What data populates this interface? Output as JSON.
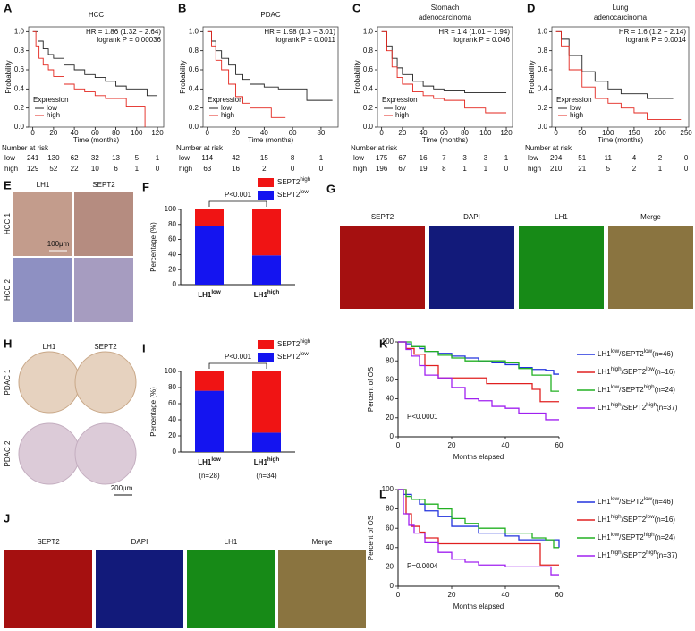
{
  "chart_data": [
    {
      "type": "line",
      "step": true,
      "label": "A",
      "title_lines": [
        "HCC"
      ],
      "annotations": [
        "HR = 1.86 (1.32 − 2.64)",
        "logrank P = 0.00036"
      ],
      "x_label": "Time (months)",
      "y_label": "Probability",
      "legend_title": "Expression",
      "legend": "lower left",
      "frame": "box",
      "xlim": [
        -4,
        126
      ],
      "xticks": [
        0,
        20,
        40,
        60,
        80,
        100,
        120
      ],
      "ylim": [
        0,
        1.05
      ],
      "yticks": [
        {
          "value": 0,
          "label": "0.0"
        },
        0.2,
        0.4,
        0.6,
        0.8,
        {
          "value": 1,
          "label": "1.0"
        }
      ],
      "series": [
        {
          "name": "low",
          "color": "#222222",
          "x": [
            0,
            5,
            10,
            15,
            20,
            30,
            40,
            50,
            60,
            70,
            80,
            90,
            100,
            110,
            120
          ],
          "values": [
            1,
            0.9,
            0.82,
            0.76,
            0.72,
            0.65,
            0.6,
            0.55,
            0.52,
            0.48,
            0.43,
            0.4,
            0.4,
            0.33,
            0.33
          ]
        },
        {
          "name": "high",
          "color": "#e3261e",
          "x": [
            0,
            3,
            6,
            10,
            15,
            20,
            30,
            40,
            50,
            60,
            70,
            80,
            90,
            100,
            108
          ],
          "values": [
            1,
            0.85,
            0.72,
            0.65,
            0.6,
            0.53,
            0.45,
            0.4,
            0.37,
            0.33,
            0.3,
            0.3,
            0.22,
            0.22,
            0
          ]
        }
      ],
      "risk_table": {
        "title": "Number at risk",
        "rows": [
          {
            "name": "low",
            "color": "#111111",
            "values": [
              241,
              130,
              62,
              32,
              13,
              5,
              1
            ]
          },
          {
            "name": "high",
            "color": "#e3261e",
            "values": [
              129,
              52,
              22,
              10,
              6,
              1,
              0
            ]
          }
        ]
      }
    },
    {
      "type": "line",
      "step": true,
      "label": "B",
      "title_lines": [
        "PDAC"
      ],
      "annotations": [
        "HR = 1.98 (1.3 − 3.01)",
        "logrank P = 0.0011"
      ],
      "x_label": "Time (months)",
      "y_label": "Probability",
      "legend_title": "Expression",
      "legend": "lower left",
      "frame": "box",
      "xlim": [
        -3,
        92
      ],
      "xticks": [
        0,
        20,
        40,
        60,
        80
      ],
      "ylim": [
        0,
        1.05
      ],
      "yticks": [
        {
          "value": 0,
          "label": "0.0"
        },
        0.2,
        0.4,
        0.6,
        0.8,
        {
          "value": 1,
          "label": "1.0"
        }
      ],
      "series": [
        {
          "name": "low",
          "color": "#222222",
          "x": [
            0,
            3,
            6,
            10,
            15,
            20,
            25,
            30,
            40,
            50,
            60,
            70,
            80,
            88
          ],
          "values": [
            1,
            0.9,
            0.8,
            0.72,
            0.65,
            0.55,
            0.5,
            0.45,
            0.42,
            0.4,
            0.4,
            0.28,
            0.28,
            0.28
          ]
        },
        {
          "name": "high",
          "color": "#e3261e",
          "x": [
            0,
            3,
            6,
            10,
            15,
            20,
            25,
            30,
            40,
            45,
            55
          ],
          "values": [
            1,
            0.85,
            0.7,
            0.6,
            0.45,
            0.32,
            0.25,
            0.2,
            0.2,
            0.1,
            0.1
          ]
        }
      ],
      "risk_table": {
        "title": "Number at risk",
        "rows": [
          {
            "name": "low",
            "color": "#111111",
            "values": [
              114,
              42,
              15,
              8,
              1
            ]
          },
          {
            "name": "high",
            "color": "#e3261e",
            "values": [
              63,
              16,
              2,
              0,
              0
            ]
          }
        ]
      }
    },
    {
      "type": "line",
      "step": true,
      "label": "C",
      "title_lines": [
        "Stomach",
        "adenocarcinoma"
      ],
      "annotations": [
        "HR = 1.4 (1.01 − 1.94)",
        "logrank P = 0.046"
      ],
      "x_label": "Time (months)",
      "y_label": "Probability",
      "legend_title": "Expression",
      "legend": "lower left",
      "frame": "box",
      "xlim": [
        -4,
        126
      ],
      "xticks": [
        0,
        20,
        40,
        60,
        80,
        100,
        120
      ],
      "ylim": [
        0,
        1.05
      ],
      "yticks": [
        {
          "value": 0,
          "label": "0.0"
        },
        0.2,
        0.4,
        0.6,
        0.8,
        {
          "value": 1,
          "label": "1.0"
        }
      ],
      "series": [
        {
          "name": "low",
          "color": "#222222",
          "x": [
            0,
            5,
            10,
            15,
            20,
            30,
            40,
            50,
            60,
            80,
            100,
            120
          ],
          "values": [
            1,
            0.85,
            0.72,
            0.62,
            0.55,
            0.48,
            0.43,
            0.4,
            0.38,
            0.36,
            0.36,
            0.36
          ]
        },
        {
          "name": "high",
          "color": "#e3261e",
          "x": [
            0,
            5,
            10,
            15,
            20,
            30,
            40,
            50,
            60,
            70,
            80,
            100,
            120
          ],
          "values": [
            1,
            0.8,
            0.63,
            0.52,
            0.45,
            0.37,
            0.33,
            0.3,
            0.28,
            0.28,
            0.2,
            0.15,
            0.15
          ]
        }
      ],
      "risk_table": {
        "title": "Number at risk",
        "rows": [
          {
            "name": "low",
            "color": "#111111",
            "values": [
              175,
              67,
              16,
              7,
              3,
              3,
              1
            ]
          },
          {
            "name": "high",
            "color": "#e3261e",
            "values": [
              196,
              67,
              19,
              8,
              1,
              1,
              0
            ]
          }
        ]
      }
    },
    {
      "type": "line",
      "step": true,
      "label": "D",
      "title_lines": [
        "Lung",
        "adenocarcinoma"
      ],
      "annotations": [
        "HR = 1.6 (1.2 − 2.14)",
        "logrank P = 0.0014"
      ],
      "x_label": "Time (months)",
      "y_label": "Probability",
      "legend_title": "Expression",
      "legend": "lower left",
      "frame": "box",
      "xlim": [
        -8,
        255
      ],
      "xticks": [
        0,
        50,
        100,
        150,
        200,
        250
      ],
      "ylim": [
        0,
        1.05
      ],
      "yticks": [
        {
          "value": 0,
          "label": "0.0"
        },
        0.2,
        0.4,
        0.6,
        0.8,
        {
          "value": 1,
          "label": "1.0"
        }
      ],
      "series": [
        {
          "name": "low",
          "color": "#222222",
          "x": [
            0,
            10,
            25,
            50,
            75,
            100,
            125,
            150,
            175,
            200,
            225
          ],
          "values": [
            1,
            0.92,
            0.75,
            0.58,
            0.48,
            0.4,
            0.35,
            0.35,
            0.3,
            0.3,
            0.3
          ]
        },
        {
          "name": "high",
          "color": "#e3261e",
          "x": [
            0,
            10,
            25,
            50,
            75,
            100,
            125,
            150,
            175,
            200,
            240
          ],
          "values": [
            1,
            0.85,
            0.6,
            0.42,
            0.3,
            0.25,
            0.2,
            0.15,
            0.08,
            0.08,
            0.08
          ]
        }
      ],
      "risk_table": {
        "title": "Number at risk",
        "rows": [
          {
            "name": "low",
            "color": "#111111",
            "values": [
              294,
              51,
              11,
              4,
              2,
              0
            ]
          },
          {
            "name": "high",
            "color": "#e3261e",
            "values": [
              210,
              21,
              5,
              2,
              1,
              0
            ]
          }
        ]
      }
    },
    {
      "type": "bar",
      "stacked": true,
      "label": "F",
      "y_label": "Percentage (%)",
      "annotation": "P<0.001",
      "frame": "axes",
      "categories": [
        [
          "LH1",
          "low"
        ],
        [
          "LH1",
          "high"
        ]
      ],
      "ylim": [
        0,
        100
      ],
      "yticks": [
        0,
        20,
        40,
        60,
        80,
        100
      ],
      "series": [
        {
          "name": [
            "SEPT2",
            "low"
          ],
          "color": "#1414f0",
          "values": [
            78,
            39
          ]
        },
        {
          "name": [
            "SEPT2",
            "high"
          ],
          "color": "#f01414",
          "values": [
            22,
            61
          ]
        }
      ]
    },
    {
      "type": "bar",
      "stacked": true,
      "label": "I",
      "y_label": "Percentage (%)",
      "annotation": "P<0.001",
      "frame": "axes",
      "categories": [
        [
          "LH1",
          "low"
        ],
        [
          "LH1",
          "high"
        ]
      ],
      "category_notes": [
        "(n=28)",
        "(n=34)"
      ],
      "ylim": [
        0,
        100
      ],
      "yticks": [
        0,
        20,
        40,
        60,
        80,
        100
      ],
      "series": [
        {
          "name": [
            "SEPT2",
            "low"
          ],
          "color": "#1414f0",
          "values": [
            76,
            24
          ]
        },
        {
          "name": [
            "SEPT2",
            "high"
          ],
          "color": "#f01414",
          "values": [
            24,
            76
          ]
        }
      ]
    },
    {
      "type": "line",
      "step": true,
      "label": "K",
      "x_label": "Months elapsed",
      "y_label": "Percent of OS",
      "annotations": [
        "P<0.0001"
      ],
      "legend": "right",
      "frame": "axes",
      "xlim": [
        0,
        60
      ],
      "xticks": [
        0,
        20,
        40,
        60
      ],
      "ylim": [
        0,
        100
      ],
      "yticks": [
        0,
        20,
        40,
        60,
        80,
        100
      ],
      "series": [
        {
          "name": [
            "LH1",
            "low",
            "/SEPT2",
            "low",
            "(n=46)"
          ],
          "color": "#2233dd",
          "x": [
            0,
            3,
            5,
            8,
            10,
            15,
            20,
            25,
            30,
            35,
            40,
            45,
            50,
            55,
            58,
            60
          ],
          "values": [
            100,
            98,
            95,
            93,
            90,
            88,
            85,
            83,
            80,
            78,
            76,
            73,
            71,
            70,
            66,
            66
          ]
        },
        {
          "name": [
            "LH1",
            "high",
            "/SEPT2",
            "low",
            "(n=16)"
          ],
          "color": "#e02020",
          "x": [
            0,
            3,
            6,
            10,
            15,
            20,
            33,
            35,
            50,
            53,
            60
          ],
          "values": [
            100,
            93,
            87,
            75,
            62,
            62,
            56,
            56,
            50,
            37,
            37
          ]
        },
        {
          "name": [
            "LH1",
            "low",
            "/SEPT2",
            "high",
            "(n=24)"
          ],
          "color": "#22b022",
          "x": [
            0,
            5,
            10,
            15,
            20,
            25,
            30,
            35,
            40,
            45,
            50,
            55,
            57,
            60
          ],
          "values": [
            100,
            95,
            90,
            86,
            83,
            80,
            80,
            80,
            78,
            72,
            65,
            65,
            48,
            48
          ]
        },
        {
          "name": [
            "LH1",
            "high",
            "/SEPT2",
            "high",
            "(n=37)"
          ],
          "color": "#a020f0",
          "x": [
            0,
            3,
            5,
            8,
            10,
            15,
            20,
            25,
            30,
            35,
            40,
            45,
            50,
            55,
            60
          ],
          "values": [
            100,
            92,
            85,
            75,
            65,
            62,
            52,
            40,
            38,
            32,
            30,
            25,
            25,
            18,
            18
          ]
        }
      ]
    },
    {
      "type": "line",
      "step": true,
      "label": "L",
      "x_label": "Months elapsed",
      "y_label": "Percent of OS",
      "annotations": [
        "P=0.0004"
      ],
      "legend": "right",
      "frame": "axes",
      "xlim": [
        0,
        60
      ],
      "xticks": [
        0,
        20,
        40,
        60
      ],
      "ylim": [
        0,
        100
      ],
      "yticks": [
        0,
        20,
        40,
        60,
        80,
        100
      ],
      "series": [
        {
          "name": [
            "LH1",
            "low",
            "/SEPT2",
            "low",
            "(n=46)"
          ],
          "color": "#2233dd",
          "x": [
            0,
            2,
            5,
            8,
            10,
            15,
            20,
            30,
            40,
            45,
            50,
            55,
            60
          ],
          "values": [
            100,
            95,
            90,
            85,
            78,
            72,
            62,
            55,
            52,
            48,
            48,
            48,
            40
          ]
        },
        {
          "name": [
            "LH1",
            "high",
            "/SEPT2",
            "low",
            "(n=16)"
          ],
          "color": "#e02020",
          "x": [
            0,
            3,
            5,
            8,
            10,
            15,
            30,
            40,
            50,
            53,
            60
          ],
          "values": [
            100,
            75,
            62,
            56,
            50,
            44,
            44,
            44,
            44,
            22,
            22
          ]
        },
        {
          "name": [
            "LH1",
            "low",
            "/SEPT2",
            "high",
            "(n=24)"
          ],
          "color": "#22b022",
          "x": [
            0,
            3,
            5,
            10,
            15,
            20,
            25,
            30,
            40,
            50,
            55,
            58,
            60
          ],
          "values": [
            100,
            93,
            90,
            85,
            80,
            70,
            65,
            60,
            55,
            50,
            48,
            40,
            40
          ]
        },
        {
          "name": [
            "LH1",
            "high",
            "/SEPT2",
            "high",
            "(n=37)"
          ],
          "color": "#a020f0",
          "x": [
            0,
            2,
            4,
            6,
            10,
            15,
            20,
            25,
            30,
            40,
            50,
            57,
            60
          ],
          "values": [
            100,
            75,
            63,
            55,
            45,
            35,
            28,
            25,
            22,
            20,
            20,
            12,
            12
          ]
        }
      ]
    }
  ],
  "images": {
    "E": {
      "label": "E",
      "columns": [
        "LH1",
        "SEPT2"
      ],
      "rows": [
        "HCC 1",
        "HCC 2"
      ],
      "scale": "100μm"
    },
    "G": {
      "label": "G",
      "channels": [
        "SEPT2",
        "DAPI",
        "LH1",
        "Merge"
      ],
      "channel_colors": [
        "#e02020",
        "#2233dd",
        "#22a022",
        "#111111"
      ]
    },
    "H": {
      "label": "H",
      "columns": [
        "LH1",
        "SEPT2"
      ],
      "rows": [
        "PDAC 1",
        "PDAC 2"
      ],
      "scale": "200μm"
    },
    "J": {
      "label": "J",
      "channels": [
        "SEPT2",
        "DAPI",
        "LH1",
        "Merge"
      ],
      "channel_colors": [
        "#e02020",
        "#2233dd",
        "#22a022",
        "#111111"
      ]
    }
  }
}
